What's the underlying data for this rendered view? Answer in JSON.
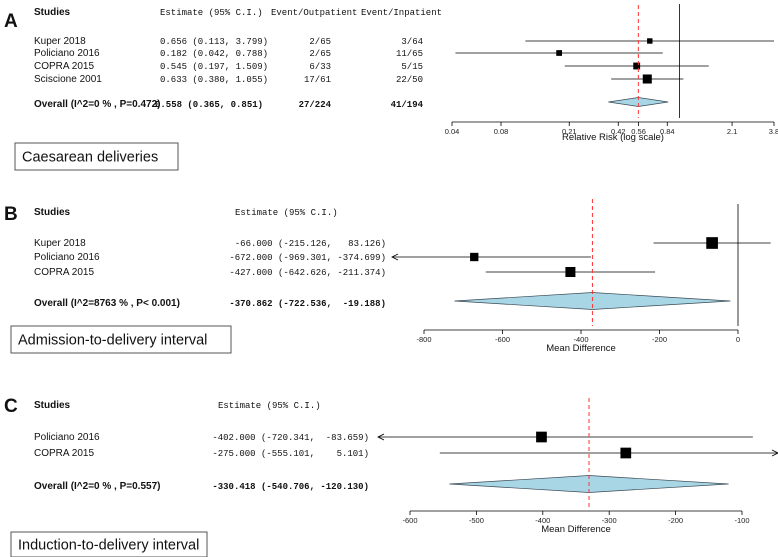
{
  "colors": {
    "reference_line": "#ff3333",
    "diamond_fill": "#a9d6e5",
    "diamond_stroke": "#3a4a55",
    "ink": "#000000"
  },
  "chart_data": [
    {
      "panel": "A",
      "type": "forest",
      "caption": "Caesarean deliveries",
      "scale": "log",
      "xlim": [
        0.04,
        3.8
      ],
      "xticks": [
        0.04,
        0.08,
        0.21,
        0.42,
        0.56,
        0.84,
        2.1,
        3.8
      ],
      "xlabel": "Relative Risk (log scale)",
      "no_effect_line": 1,
      "pooled_line": 0.558,
      "headers": {
        "studies": "Studies",
        "estimate": "Estimate (95% C.I.)",
        "event_out": "Event/Outpatient",
        "event_in": "Event/Inpatient"
      },
      "studies": [
        {
          "name": "Kuper 2018",
          "estimate_text": "0.656 (0.113, 3.799)",
          "event_out": "2/65",
          "event_in": "3/64",
          "est": 0.656,
          "lo": 0.113,
          "hi": 3.799,
          "weight": 0.22
        },
        {
          "name": "Policiano 2016",
          "estimate_text": "0.182 (0.042, 0.788)",
          "event_out": "2/65",
          "event_in": "11/65",
          "est": 0.182,
          "lo": 0.042,
          "hi": 0.788,
          "weight": 0.25
        },
        {
          "name": "COPRA 2015",
          "estimate_text": "0.545 (0.197, 1.509)",
          "event_out": "6/33",
          "event_in": "5/15",
          "est": 0.545,
          "lo": 0.197,
          "hi": 1.509,
          "weight": 0.35
        },
        {
          "name": "Sciscione 2001",
          "estimate_text": "0.633 (0.380, 1.055)",
          "event_out": "17/61",
          "event_in": "22/50",
          "est": 0.633,
          "lo": 0.38,
          "hi": 1.055,
          "weight": 0.55
        }
      ],
      "overall": {
        "label": "Overall (I^2=0 % , P=0.472)",
        "estimate_text": "0.558 (0.365, 0.851)",
        "event_out": "27/224",
        "event_in": "41/194",
        "est": 0.558,
        "lo": 0.365,
        "hi": 0.851
      }
    },
    {
      "panel": "B",
      "type": "forest",
      "caption": "Admission-to-delivery interval",
      "scale": "linear",
      "xlim": [
        -800,
        0
      ],
      "xticks": [
        -800,
        -600,
        -400,
        -200,
        0
      ],
      "xlabel": "Mean Difference",
      "no_effect_line": 0,
      "pooled_line": -370.862,
      "headers": {
        "studies": "Studies",
        "estimate": "Estimate (95% C.I.)"
      },
      "studies": [
        {
          "name": "Kuper 2018",
          "estimate_text": "-66.000 (-215.126,   83.126)",
          "est": -66,
          "lo": -215.126,
          "hi": 83.126,
          "weight": 0.62
        },
        {
          "name": "Policiano 2016",
          "estimate_text": "-672.000 (-969.301, -374.699)",
          "est": -672,
          "lo": -969.301,
          "hi": -374.699,
          "weight": 0.38
        },
        {
          "name": "COPRA 2015",
          "estimate_text": "-427.000 (-642.626, -211.374)",
          "est": -427,
          "lo": -642.626,
          "hi": -211.374,
          "weight": 0.5
        }
      ],
      "overall": {
        "label": "Overall (I^2=8763 % , P< 0.001)",
        "estimate_text": "-370.862 (-722.536,  -19.188)",
        "est": -370.862,
        "lo": -722.536,
        "hi": -19.188
      }
    },
    {
      "panel": "C",
      "type": "forest",
      "caption": "Induction-to-delivery interval",
      "scale": "linear",
      "xlim": [
        -600,
        -100
      ],
      "xticks": [
        -600,
        -500,
        -400,
        -300,
        -200,
        -100
      ],
      "xlabel": "Mean Difference",
      "no_effect_line": null,
      "pooled_line": -330.418,
      "headers": {
        "studies": "Studies",
        "estimate": "Estimate (95% C.I.)"
      },
      "studies": [
        {
          "name": "Policiano 2016",
          "estimate_text": "-402.000 (-720.341,  -83.659)",
          "est": -402,
          "lo": -720.341,
          "hi": -83.659,
          "weight": 0.55
        },
        {
          "name": "COPRA 2015",
          "estimate_text": "-275.000 (-555.101,    5.101)",
          "est": -275,
          "lo": -555.101,
          "hi": 5.101,
          "weight": 0.55
        }
      ],
      "overall": {
        "label": "Overall (I^2=0 % , P=0.557)",
        "estimate_text": "-330.418 (-540.706, -120.130)",
        "est": -330.418,
        "lo": -540.706,
        "hi": -120.13
      }
    }
  ]
}
